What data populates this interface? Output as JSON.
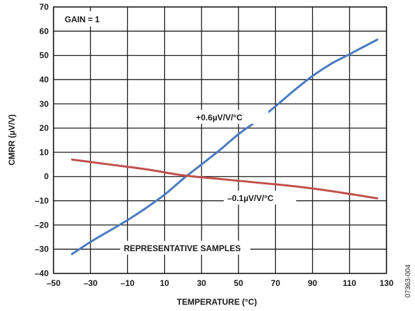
{
  "chart_data": {
    "type": "line",
    "xlabel": "TEMPERATURE (°C)",
    "ylabel": "CMRR (µV/V)",
    "xlim": [
      -50,
      130
    ],
    "ylim": [
      -40,
      70
    ],
    "xticks": [
      -50,
      -30,
      -10,
      10,
      30,
      50,
      70,
      90,
      110,
      130
    ],
    "yticks": [
      -40,
      -30,
      -20,
      -10,
      0,
      10,
      20,
      30,
      40,
      50,
      60,
      70
    ],
    "grid": true,
    "series": [
      {
        "color": "#4a7bbf",
        "x": [
          -40,
          -30,
          -20,
          -10,
          0,
          10,
          20,
          30,
          40,
          50,
          60,
          70,
          80,
          90,
          100,
          110,
          125
        ],
        "y": [
          -32,
          -27,
          -22.5,
          -18,
          -13,
          -7.5,
          -1,
          5,
          11,
          17.5,
          23,
          29,
          35.5,
          41.5,
          46.5,
          50.5,
          56.5
        ]
      },
      {
        "color": "#c0504d",
        "x": [
          -40,
          -20,
          0,
          20,
          40,
          60,
          80,
          100,
          125
        ],
        "y": [
          7,
          5,
          3,
          0.5,
          -1,
          -2.5,
          -4,
          -6,
          -9
        ]
      }
    ],
    "annotations": {
      "gain": "GAIN = 1",
      "blue_label": "+0.6µV/V/°C",
      "red_label": "–0.1µV/V/°C",
      "samples": "REPRESENTATIVE SAMPLES"
    },
    "figure_id": "07363-004"
  }
}
